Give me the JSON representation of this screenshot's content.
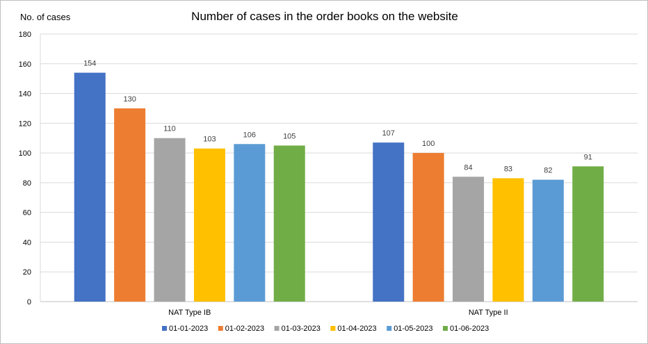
{
  "chart_data": {
    "type": "bar",
    "title": "Number of cases in the order books on the website",
    "ylabel": "No. of cases",
    "xlabel": "",
    "categories": [
      "NAT Type IB",
      "NAT Type II"
    ],
    "ylim": [
      0,
      180
    ],
    "yticks": [
      0,
      20,
      40,
      60,
      80,
      100,
      120,
      140,
      160,
      180
    ],
    "grid": true,
    "legend_position": "bottom",
    "series": [
      {
        "name": "01-01-2023",
        "color": "#4472C4",
        "values": [
          154,
          107
        ]
      },
      {
        "name": "01-02-2023",
        "color": "#ED7D31",
        "values": [
          130,
          100
        ]
      },
      {
        "name": "01-03-2023",
        "color": "#A5A5A5",
        "values": [
          110,
          84
        ]
      },
      {
        "name": "01-04-2023",
        "color": "#FFC000",
        "values": [
          103,
          83
        ]
      },
      {
        "name": "01-05-2023",
        "color": "#5B9BD5",
        "values": [
          106,
          82
        ]
      },
      {
        "name": "01-06-2023",
        "color": "#70AD47",
        "values": [
          105,
          91
        ]
      }
    ]
  }
}
